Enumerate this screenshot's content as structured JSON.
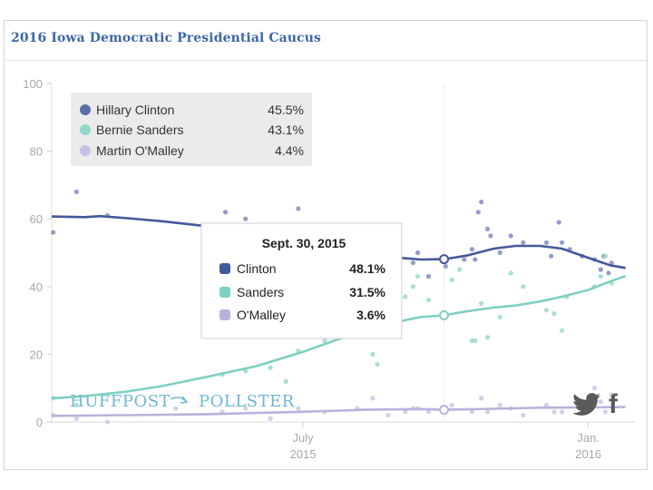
{
  "header": {
    "title": "2016 Iowa Democratic Presidential Caucus"
  },
  "watermark": {
    "left": "HUFFPOST",
    "right": "POLLSTER"
  },
  "social": [
    {
      "name": "twitter",
      "icon": "twitter-icon"
    },
    {
      "name": "facebook",
      "icon": "facebook-icon",
      "glyph": "f"
    }
  ],
  "colors": {
    "clinton": "#44589c",
    "sanders": "#7fd0c1",
    "omalley": "#b9b2dc"
  },
  "legend": [
    {
      "name": "Hillary Clinton",
      "value": "45.5%",
      "color": "#5c6ea8"
    },
    {
      "name": "Bernie Sanders",
      "value": "43.1%",
      "color": "#8fd8cb"
    },
    {
      "name": "Martin O'Malley",
      "value": "4.4%",
      "color": "#c6c0e3"
    }
  ],
  "tooltip": {
    "title": "Sept. 30, 2015",
    "rows": [
      {
        "name": "Clinton",
        "value": "48.1%",
        "color": "#44589c"
      },
      {
        "name": "Sanders",
        "value": "31.5%",
        "color": "#7fd0c1"
      },
      {
        "name": "O'Malley",
        "value": "3.6%",
        "color": "#b9b2dc"
      }
    ]
  },
  "chart_data": {
    "type": "line",
    "title": "2016 Iowa Democratic Presidential Caucus",
    "xlabel": "",
    "ylabel": "",
    "ylim": [
      0,
      100
    ],
    "xlim": [
      "2015-01-20",
      "2016-01-31"
    ],
    "yticks": [
      0,
      20,
      40,
      60,
      80,
      100
    ],
    "xticks": [
      {
        "date": "2015-07-01",
        "line1": "July",
        "line2": "2015"
      },
      {
        "date": "2016-01-01",
        "line1": "Jan.",
        "line2": "2016"
      }
    ],
    "grid": false,
    "legend_position": "top-left",
    "hover_date": "2015-09-30",
    "series": [
      {
        "name": "Clinton",
        "trend": [
          [
            "2015-01-20",
            60.7
          ],
          [
            "2015-02-10",
            60.5
          ],
          [
            "2015-02-20",
            60.8
          ],
          [
            "2015-03-10",
            60.2
          ],
          [
            "2015-04-01",
            59.3
          ],
          [
            "2015-05-01",
            57.8
          ],
          [
            "2015-06-01",
            55.3
          ],
          [
            "2015-07-01",
            52.6
          ],
          [
            "2015-07-20",
            50.8
          ],
          [
            "2015-08-10",
            49.3
          ],
          [
            "2015-09-01",
            48.5
          ],
          [
            "2015-09-15",
            48.0
          ],
          [
            "2015-09-30",
            48.1
          ],
          [
            "2015-10-15",
            49.2
          ],
          [
            "2015-11-01",
            51.2
          ],
          [
            "2015-11-15",
            52.0
          ],
          [
            "2015-12-01",
            52.0
          ],
          [
            "2015-12-15",
            51.2
          ],
          [
            "2016-01-01",
            48.5
          ],
          [
            "2016-01-15",
            46.3
          ],
          [
            "2016-01-25",
            45.5
          ]
        ],
        "polls": [
          [
            "2015-01-21",
            56
          ],
          [
            "2015-02-05",
            68
          ],
          [
            "2015-02-25",
            61
          ],
          [
            "2015-05-10",
            57
          ],
          [
            "2015-05-12",
            62
          ],
          [
            "2015-05-25",
            60
          ],
          [
            "2015-06-28",
            63
          ],
          [
            "2015-09-10",
            47
          ],
          [
            "2015-09-13",
            50
          ],
          [
            "2015-09-20",
            43
          ],
          [
            "2015-10-01",
            46
          ],
          [
            "2015-10-13",
            48
          ],
          [
            "2015-10-18",
            51
          ],
          [
            "2015-10-20",
            48
          ],
          [
            "2015-10-22",
            62
          ],
          [
            "2015-10-24",
            65
          ],
          [
            "2015-10-28",
            57
          ],
          [
            "2015-10-30",
            55
          ],
          [
            "2015-11-05",
            50
          ],
          [
            "2015-11-12",
            55
          ],
          [
            "2015-11-20",
            53
          ],
          [
            "2015-12-05",
            53
          ],
          [
            "2015-12-08",
            49
          ],
          [
            "2015-12-13",
            59
          ],
          [
            "2015-12-15",
            53
          ],
          [
            "2015-12-20",
            51
          ],
          [
            "2015-12-28",
            49
          ],
          [
            "2016-01-05",
            48
          ],
          [
            "2016-01-09",
            45
          ],
          [
            "2016-01-11",
            49
          ],
          [
            "2016-01-14",
            44
          ],
          [
            "2016-01-16",
            47
          ]
        ]
      },
      {
        "name": "Sanders",
        "trend": [
          [
            "2015-01-20",
            7.0
          ],
          [
            "2015-02-10",
            7.6
          ],
          [
            "2015-03-10",
            9.0
          ],
          [
            "2015-04-01",
            10.6
          ],
          [
            "2015-05-01",
            13.4
          ],
          [
            "2015-06-01",
            16.5
          ],
          [
            "2015-07-01",
            20.7
          ],
          [
            "2015-07-20",
            23.8
          ],
          [
            "2015-08-10",
            27.0
          ],
          [
            "2015-09-01",
            29.7
          ],
          [
            "2015-09-15",
            31.0
          ],
          [
            "2015-09-30",
            31.5
          ],
          [
            "2015-10-15",
            32.7
          ],
          [
            "2015-11-01",
            33.8
          ],
          [
            "2015-11-15",
            34.4
          ],
          [
            "2015-12-01",
            35.6
          ],
          [
            "2015-12-15",
            37.0
          ],
          [
            "2016-01-01",
            39.0
          ],
          [
            "2016-01-15",
            41.5
          ],
          [
            "2016-01-25",
            43.1
          ]
        ],
        "polls": [
          [
            "2015-01-21",
            7
          ],
          [
            "2015-02-05",
            5
          ],
          [
            "2015-02-25",
            8
          ],
          [
            "2015-05-10",
            14
          ],
          [
            "2015-05-25",
            15
          ],
          [
            "2015-06-10",
            16
          ],
          [
            "2015-06-20",
            12
          ],
          [
            "2015-06-28",
            21
          ],
          [
            "2015-07-15",
            24
          ],
          [
            "2015-08-05",
            29
          ],
          [
            "2015-08-15",
            20
          ],
          [
            "2015-08-18",
            17
          ],
          [
            "2015-08-25",
            37
          ],
          [
            "2015-08-28",
            26
          ],
          [
            "2015-09-05",
            37
          ],
          [
            "2015-09-10",
            40
          ],
          [
            "2015-09-13",
            43
          ],
          [
            "2015-09-20",
            36
          ],
          [
            "2015-10-05",
            42
          ],
          [
            "2015-10-10",
            45
          ],
          [
            "2015-10-18",
            24
          ],
          [
            "2015-10-20",
            24
          ],
          [
            "2015-10-24",
            35
          ],
          [
            "2015-10-28",
            25
          ],
          [
            "2015-11-05",
            31
          ],
          [
            "2015-11-12",
            44
          ],
          [
            "2015-11-20",
            40
          ],
          [
            "2015-12-05",
            33
          ],
          [
            "2015-12-10",
            32
          ],
          [
            "2015-12-15",
            27
          ],
          [
            "2015-12-18",
            37
          ],
          [
            "2016-01-05",
            40
          ],
          [
            "2016-01-09",
            43
          ],
          [
            "2016-01-12",
            49
          ],
          [
            "2016-01-16",
            41
          ]
        ]
      },
      {
        "name": "O'Malley",
        "trend": [
          [
            "2015-01-20",
            1.8
          ],
          [
            "2015-03-10",
            2.0
          ],
          [
            "2015-05-01",
            2.3
          ],
          [
            "2015-07-01",
            3.0
          ],
          [
            "2015-08-10",
            3.6
          ],
          [
            "2015-09-15",
            3.8
          ],
          [
            "2015-09-30",
            3.6
          ],
          [
            "2015-11-01",
            3.9
          ],
          [
            "2015-12-01",
            4.2
          ],
          [
            "2016-01-01",
            4.3
          ],
          [
            "2016-01-25",
            4.4
          ]
        ],
        "polls": [
          [
            "2015-01-21",
            2
          ],
          [
            "2015-02-05",
            1
          ],
          [
            "2015-02-25",
            0
          ],
          [
            "2015-04-10",
            4
          ],
          [
            "2015-05-10",
            3
          ],
          [
            "2015-05-25",
            4
          ],
          [
            "2015-06-10",
            1
          ],
          [
            "2015-06-28",
            4
          ],
          [
            "2015-07-15",
            3
          ],
          [
            "2015-08-05",
            4
          ],
          [
            "2015-08-15",
            7
          ],
          [
            "2015-08-25",
            2
          ],
          [
            "2015-09-05",
            3
          ],
          [
            "2015-09-10",
            4
          ],
          [
            "2015-09-13",
            4
          ],
          [
            "2015-09-20",
            3
          ],
          [
            "2015-10-05",
            5
          ],
          [
            "2015-10-18",
            3
          ],
          [
            "2015-10-24",
            7
          ],
          [
            "2015-10-28",
            3
          ],
          [
            "2015-11-05",
            5
          ],
          [
            "2015-11-12",
            4
          ],
          [
            "2015-11-20",
            2
          ],
          [
            "2015-12-05",
            5
          ],
          [
            "2015-12-10",
            3
          ],
          [
            "2015-12-15",
            3
          ],
          [
            "2015-12-28",
            6
          ],
          [
            "2016-01-05",
            10
          ],
          [
            "2016-01-09",
            6
          ],
          [
            "2016-01-12",
            3
          ],
          [
            "2016-01-16",
            8
          ]
        ]
      }
    ]
  }
}
